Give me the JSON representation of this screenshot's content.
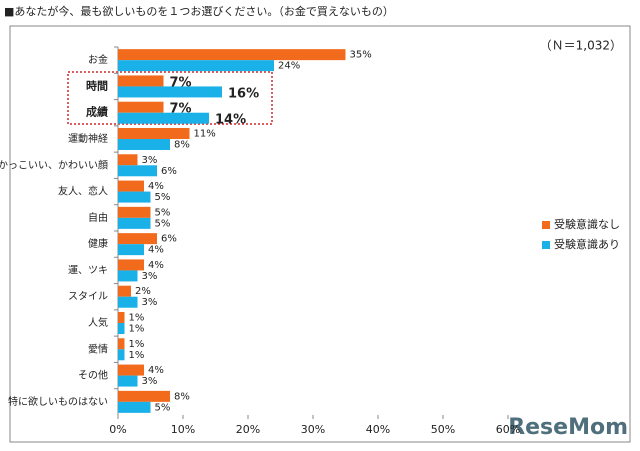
{
  "chart_data": {
    "type": "bar",
    "orientation": "horizontal",
    "title": "■あなたが今、最も欲しいものを１つお選びください。（お金で買えないもの）",
    "annotation": "（Ｎ＝1,032）",
    "logo": "ReseMom",
    "categories": [
      "お金",
      "時間",
      "成績",
      "運動神経",
      "かっこいい、かわいい顔",
      "友人、恋人",
      "自由",
      "健康",
      "運、ツキ",
      "スタイル",
      "人気",
      "愛情",
      "その他",
      "特に欲しいものはない"
    ],
    "series": [
      {
        "name": "受験意識なし",
        "color": "#f26b1d",
        "values": [
          35,
          7,
          7,
          11,
          3,
          4,
          5,
          6,
          4,
          2,
          1,
          1,
          4,
          8
        ],
        "value_labels": [
          "35%",
          "7%",
          "7%",
          "11%",
          "3%",
          "4%",
          "5%",
          "6%",
          "4%",
          "2%",
          "1%",
          "1%",
          "4%",
          "8%"
        ]
      },
      {
        "name": "受験意識あり",
        "color": "#1ab0e8",
        "values": [
          24,
          16,
          14,
          8,
          6,
          5,
          5,
          4,
          3,
          3,
          1,
          1,
          3,
          5
        ],
        "value_labels": [
          "24%",
          "16%",
          "14%",
          "8%",
          "6%",
          "5%",
          "5%",
          "4%",
          "3%",
          "3%",
          "1%",
          "1%",
          "3%",
          "5%"
        ]
      }
    ],
    "xlim": [
      0,
      60
    ],
    "xticks": [
      {
        "value": 0,
        "label": "0%"
      },
      {
        "value": 10,
        "label": "10%"
      },
      {
        "value": 20,
        "label": "20%"
      },
      {
        "value": 30,
        "label": "30%"
      },
      {
        "value": 40,
        "label": "40%"
      },
      {
        "value": 50,
        "label": "50%"
      },
      {
        "value": 60,
        "label": "60%"
      }
    ],
    "legend": "right"
  }
}
